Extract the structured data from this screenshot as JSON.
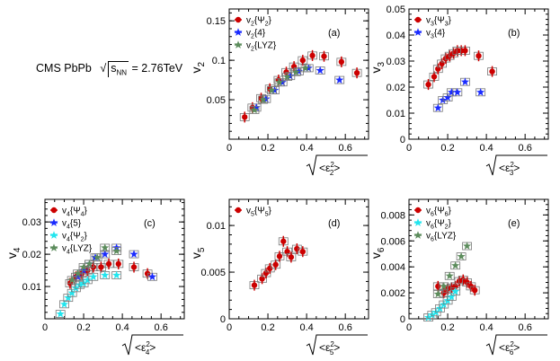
{
  "header": {
    "collaboration": "CMS PbPb",
    "sqrt_symbol": "√",
    "s": "s",
    "nn": "NN",
    "energy": " = 2.76TeV"
  },
  "palette": {
    "red": "#cc0000",
    "blue": "#1a2bff",
    "green": "#5c8c5c",
    "cyan": "#22e5ee",
    "syst": "#777777"
  },
  "chart_data": [
    {
      "type": "scatter",
      "panel": "(a)",
      "ylabel_main": "v",
      "ylabel_sub": "2",
      "xlabel_eps_sub": "2",
      "xlim": [
        0,
        0.72
      ],
      "ylim": [
        0,
        0.165
      ],
      "xticks": [
        "0",
        "0.2",
        "0.4",
        "0.6"
      ],
      "yticks": [
        "0.05",
        "0.1",
        "0.15"
      ],
      "ytick_values": [
        0.05,
        0.1,
        0.15
      ],
      "legend": [
        "v2{Ψ2}",
        "v2{4}",
        "v2{LYZ}"
      ],
      "series": [
        {
          "name": "v2{Ψ2}",
          "marker": "circle",
          "color": "red",
          "x": [
            0.08,
            0.12,
            0.165,
            0.21,
            0.255,
            0.295,
            0.335,
            0.38,
            0.43,
            0.49,
            0.58,
            0.66
          ],
          "y": [
            0.028,
            0.04,
            0.052,
            0.064,
            0.075,
            0.085,
            0.092,
            0.1,
            0.106,
            0.105,
            0.098,
            0.084
          ]
        },
        {
          "name": "v2{4}",
          "marker": "star",
          "color": "blue",
          "x": [
            0.14,
            0.19,
            0.235,
            0.275,
            0.315,
            0.36,
            0.41,
            0.47,
            0.57
          ],
          "y": [
            0.04,
            0.051,
            0.062,
            0.072,
            0.08,
            0.086,
            0.09,
            0.087,
            0.075
          ]
        },
        {
          "name": "v2{LYZ}",
          "marker": "star",
          "color": "green",
          "x": [
            0.13,
            0.175,
            0.22,
            0.26,
            0.3,
            0.345,
            0.395
          ],
          "y": [
            0.037,
            0.05,
            0.062,
            0.072,
            0.079,
            0.085,
            0.09
          ]
        }
      ]
    },
    {
      "type": "scatter",
      "panel": "(b)",
      "ylabel_main": "v",
      "ylabel_sub": "3",
      "xlabel_eps_sub": "3",
      "xlim": [
        0,
        0.72
      ],
      "ylim": [
        0,
        0.05
      ],
      "xticks": [
        "0",
        "0.2",
        "0.4",
        "0.6"
      ],
      "yticks": [
        "0",
        "0.01",
        "0.02",
        "0.03",
        "0.04",
        "0.05"
      ],
      "ytick_values": [
        0,
        0.01,
        0.02,
        0.03,
        0.04,
        0.05
      ],
      "legend": [
        "v3{Ψ3}",
        "v3{4}"
      ],
      "series": [
        {
          "name": "v3{Ψ3}",
          "marker": "circle",
          "color": "red",
          "x": [
            0.1,
            0.13,
            0.15,
            0.17,
            0.19,
            0.21,
            0.23,
            0.25,
            0.27,
            0.29,
            0.36,
            0.43
          ],
          "y": [
            0.021,
            0.024,
            0.027,
            0.029,
            0.031,
            0.032,
            0.033,
            0.034,
            0.034,
            0.034,
            0.032,
            0.026
          ]
        },
        {
          "name": "v3{4}",
          "marker": "star",
          "color": "blue",
          "x": [
            0.15,
            0.175,
            0.2,
            0.22,
            0.25,
            0.29,
            0.37
          ],
          "y": [
            0.012,
            0.015,
            0.016,
            0.018,
            0.018,
            0.022,
            0.018
          ]
        }
      ]
    },
    {
      "type": "scatter",
      "panel": "(c)",
      "ylabel_main": "v",
      "ylabel_sub": "4",
      "xlabel_eps_sub": "4",
      "xlim": [
        0,
        0.72
      ],
      "ylim": [
        0,
        0.037
      ],
      "xticks": [
        "0",
        "0.2",
        "0.4",
        "0.6"
      ],
      "yticks": [
        "0.01",
        "0.02",
        "0.03"
      ],
      "ytick_values": [
        0.01,
        0.02,
        0.03
      ],
      "legend": [
        "v4{Ψ4}",
        "v4{5}",
        "v4{Ψ2}",
        "v4{LYZ}"
      ],
      "series": [
        {
          "name": "v4{Ψ4}",
          "marker": "circle",
          "color": "red",
          "x": [
            0.13,
            0.16,
            0.19,
            0.22,
            0.25,
            0.29,
            0.33,
            0.38,
            0.46,
            0.53
          ],
          "y": [
            0.011,
            0.013,
            0.014,
            0.015,
            0.016,
            0.016,
            0.017,
            0.017,
            0.016,
            0.014
          ]
        },
        {
          "name": "v4{5}",
          "marker": "star",
          "color": "blue",
          "x": [
            0.17,
            0.2,
            0.23,
            0.26,
            0.31,
            0.37,
            0.46,
            0.555
          ],
          "y": [
            0.013,
            0.015,
            0.017,
            0.019,
            0.02,
            0.022,
            0.02,
            0.013
          ]
        },
        {
          "name": "v4{Ψ2}",
          "marker": "star",
          "color": "cyan",
          "x": [
            0.08,
            0.1,
            0.12,
            0.14,
            0.16,
            0.18,
            0.2,
            0.22,
            0.25,
            0.31,
            0.37
          ],
          "y": [
            0.0015,
            0.0045,
            0.0065,
            0.008,
            0.0095,
            0.0105,
            0.011,
            0.012,
            0.013,
            0.0135,
            0.0135
          ]
        },
        {
          "name": "v4{LYZ}",
          "marker": "star",
          "color": "green",
          "x": [
            0.14,
            0.17,
            0.2,
            0.23,
            0.27,
            0.31,
            0.37
          ],
          "y": [
            0.012,
            0.014,
            0.016,
            0.017,
            0.019,
            0.022,
            0.021
          ]
        }
      ]
    },
    {
      "type": "scatter",
      "panel": "(d)",
      "ylabel_main": "v",
      "ylabel_sub": "5",
      "xlabel_eps_sub": "5",
      "xlim": [
        0,
        0.72
      ],
      "ylim": [
        0,
        0.0128
      ],
      "xticks": [
        "0",
        "0.2",
        "0.4",
        "0.6"
      ],
      "yticks": [
        "0",
        "0.005",
        "0.01"
      ],
      "ytick_values": [
        0,
        0.005,
        0.01
      ],
      "legend": [
        "v5{Ψ5}"
      ],
      "series": [
        {
          "name": "v5{Ψ5}",
          "marker": "circle",
          "color": "red",
          "x": [
            0.13,
            0.17,
            0.19,
            0.21,
            0.24,
            0.26,
            0.28,
            0.3,
            0.32,
            0.35,
            0.38
          ],
          "y": [
            0.0036,
            0.0043,
            0.0049,
            0.0054,
            0.0058,
            0.0067,
            0.0083,
            0.0072,
            0.0066,
            0.0075,
            0.0072
          ]
        }
      ]
    },
    {
      "type": "scatter",
      "panel": "(e)",
      "ylabel_main": "v",
      "ylabel_sub": "6",
      "xlabel_eps_sub": "6",
      "xlim": [
        0,
        0.72
      ],
      "ylim": [
        0,
        0.0092
      ],
      "xticks": [
        "0",
        "0.2",
        "0.4",
        "0.6"
      ],
      "yticks": [
        "0",
        "0.002",
        "0.004",
        "0.006",
        "0.008"
      ],
      "ytick_values": [
        0,
        0.002,
        0.004,
        0.006,
        0.008
      ],
      "legend": [
        "v6{Ψ6}",
        "v6{Ψ2}",
        "v6{LYZ}"
      ],
      "series": [
        {
          "name": "v6{Ψ6}",
          "marker": "circle",
          "color": "red",
          "x": [
            0.15,
            0.18,
            0.2,
            0.22,
            0.24,
            0.26,
            0.28,
            0.3,
            0.32,
            0.34
          ],
          "y": [
            0.0025,
            0.002,
            0.0023,
            0.0024,
            0.0025,
            0.0029,
            0.003,
            0.0028,
            0.0025,
            0.0022
          ]
        },
        {
          "name": "v6{Ψ2}",
          "marker": "star",
          "color": "cyan",
          "x": [
            0.1,
            0.12,
            0.14,
            0.16,
            0.18,
            0.2,
            0.22,
            0.24
          ],
          "y": [
            0.0001,
            0.0003,
            0.0005,
            0.0008,
            0.0011,
            0.0014,
            0.0017,
            0.0021
          ]
        },
        {
          "name": "v6{LYZ}",
          "marker": "star",
          "color": "green",
          "x": [
            0.15,
            0.18,
            0.21,
            0.24,
            0.27,
            0.3
          ],
          "y": [
            0.0019,
            0.0025,
            0.0033,
            0.0041,
            0.0048,
            0.0056
          ]
        }
      ]
    }
  ]
}
